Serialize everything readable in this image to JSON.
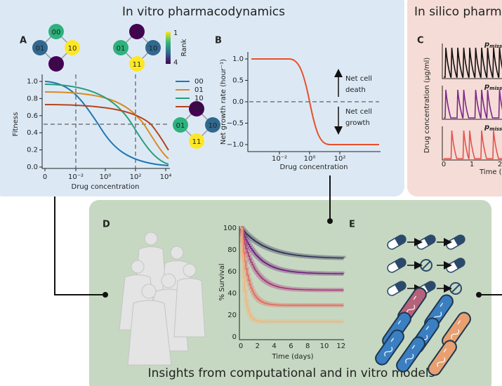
{
  "in_vitro": {
    "title": "In vitro pharmacodynamics",
    "panel_a": {
      "label": "A",
      "genotype_maps": [
        {
          "nodes": [
            "00",
            "01",
            "10",
            "11"
          ]
        },
        {
          "nodes": [
            "00",
            "01",
            "10",
            "11"
          ]
        },
        {
          "nodes": [
            "00",
            "01",
            "10",
            "11"
          ]
        }
      ],
      "colorbar": {
        "top": "1",
        "bottom": "4",
        "title": "Rank"
      },
      "y_label": "Fitness",
      "y_ticks": [
        "0.0",
        "0.2",
        "0.4",
        "0.6",
        "0.8",
        "1.0"
      ],
      "x_label": "Drug concentration",
      "x_ticks": [
        "0",
        "10⁻²",
        "10⁰",
        "10²",
        "10⁴"
      ],
      "legend": [
        "00",
        "01",
        "10",
        "11"
      ]
    },
    "panel_b": {
      "label": "B",
      "y_label": "Net growth rate (hour⁻¹)",
      "y_ticks": [
        "1.0",
        "0.5",
        "0.0",
        "−0.5",
        "−1.0"
      ],
      "x_label": "Drug concentration",
      "x_ticks": [
        "10⁻²",
        "10⁰",
        "10²"
      ],
      "annotation_up": [
        "Net cell",
        "death"
      ],
      "annotation_down": [
        "Net cell",
        "growth"
      ]
    }
  },
  "in_silico": {
    "title": "In silico pharm",
    "panel_c": {
      "label": "C",
      "y_label": "Drug concentration (µg/ml)",
      "subplot_labels": [
        {
          "symbol": "p",
          "subscript": "miss"
        },
        {
          "symbol": "p",
          "subscript": "miss"
        },
        {
          "symbol": "p",
          "subscript": "miss"
        }
      ],
      "x_ticks": [
        "0",
        "1",
        "2"
      ],
      "x_label": "Time ("
    }
  },
  "insights": {
    "title": "Insights from computational and in vitro models",
    "panel_d": {
      "label": "D",
      "y_label": "% Survival",
      "y_ticks": [
        "0",
        "20",
        "40",
        "60",
        "80",
        "100"
      ],
      "x_ticks": [
        "0",
        "2",
        "4",
        "6",
        "8",
        "10",
        "12"
      ],
      "x_label": "Time (days)"
    },
    "panel_e": {
      "label": "E"
    }
  }
}
